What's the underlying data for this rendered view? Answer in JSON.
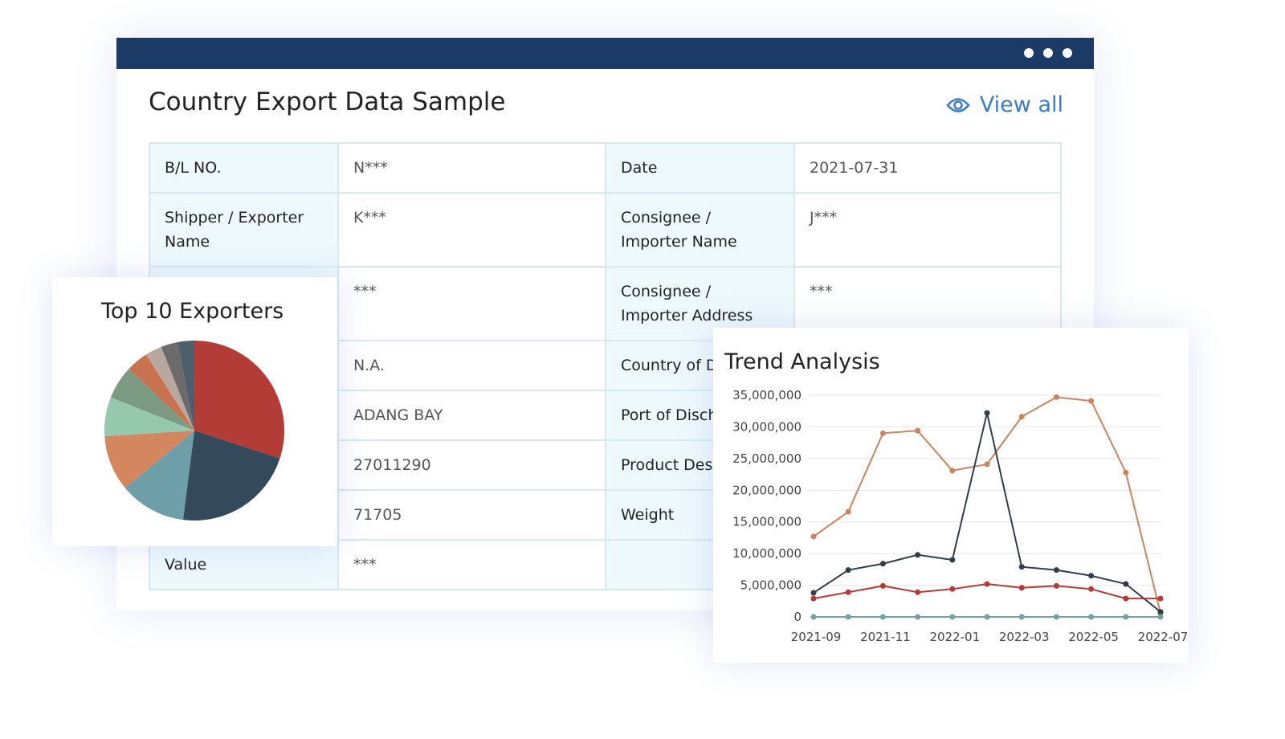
{
  "window": {
    "title": "Country Export Data Sample",
    "view_all": "View all"
  },
  "table": {
    "rows": [
      [
        "B/L NO.",
        "N***",
        "Date",
        "2021-07-31"
      ],
      [
        "Shipper / Exporter Name",
        "K***",
        "Consignee / Importer Name",
        "J***"
      ],
      [
        null,
        "***",
        "Consignee / Importer Address",
        "***"
      ],
      [
        null,
        "N.A.",
        "Country of D",
        null
      ],
      [
        null,
        "ADANG BAY",
        "Port of Disch",
        null
      ],
      [
        null,
        "27011290",
        "Product Des",
        null
      ],
      [
        null,
        "71705",
        "Weight",
        null
      ],
      [
        "Value",
        "***",
        null,
        null
      ]
    ]
  },
  "chart_data": [
    {
      "type": "pie",
      "title": "Top 10 Exporters",
      "values": [
        30,
        22,
        12,
        10,
        7,
        6,
        4,
        3,
        3,
        3
      ],
      "colors": [
        "#b33c37",
        "#34495a",
        "#6e9fa8",
        "#d4875f",
        "#96c8ae",
        "#7d9a82",
        "#c8734f",
        "#b8a8a0",
        "#6b6b6b",
        "#4f5e6b"
      ]
    },
    {
      "type": "line",
      "title": "Trend Analysis",
      "categories": [
        "2021-09",
        null,
        "2021-11",
        null,
        "2022-01",
        null,
        "2022-03",
        null,
        "2022-05",
        null,
        "2022-07"
      ],
      "ylim": [
        0,
        35000000
      ],
      "yticks": [
        0,
        {
          "value": 5000000,
          "label": "5,000,000"
        },
        {
          "value": 10000000,
          "label": "10,000,000"
        },
        {
          "value": 15000000,
          "label": "15,000,000"
        },
        {
          "value": 20000000,
          "label": "20,000,000"
        },
        {
          "value": 25000000,
          "label": "25,000,000"
        },
        {
          "value": 30000000,
          "label": "30,000,000"
        },
        {
          "value": 35000000,
          "label": "35,000,000"
        }
      ],
      "grid": true,
      "series": [
        {
          "color": "#c8845f",
          "values": [
            12700000,
            16600000,
            29000000,
            29400000,
            23100000,
            24100000,
            31600000,
            34700000,
            34100000,
            22800000,
            600000
          ]
        },
        {
          "color": "#2f3e4b",
          "values": [
            3800000,
            7400000,
            8400000,
            9800000,
            9000000,
            32200000,
            7900000,
            7400000,
            6500000,
            5200000,
            800000
          ]
        },
        {
          "color": "#b53a36",
          "values": [
            2900000,
            3900000,
            4900000,
            3900000,
            4400000,
            5200000,
            4600000,
            4900000,
            4400000,
            2900000,
            2900000
          ]
        },
        {
          "color": "#6fa3a6",
          "values": [
            0,
            0,
            0,
            0,
            0,
            0,
            0,
            0,
            0,
            0,
            0
          ]
        }
      ]
    }
  ]
}
